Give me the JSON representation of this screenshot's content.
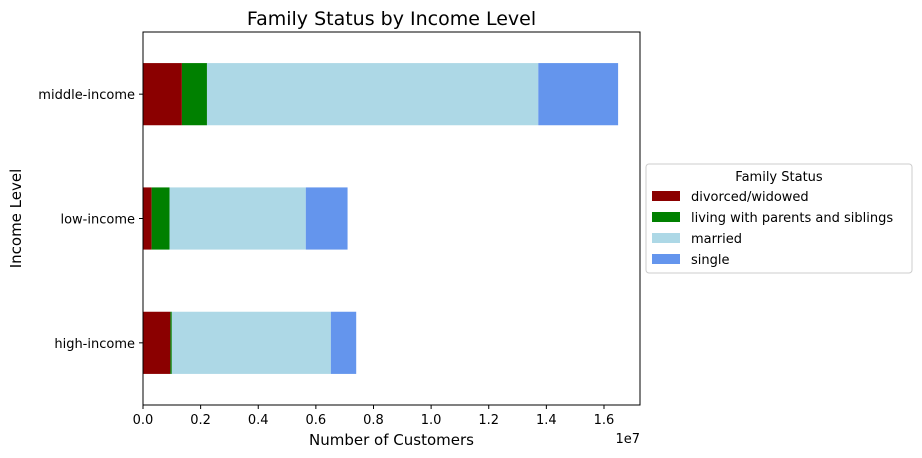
{
  "chart_data": {
    "type": "bar",
    "orientation": "horizontal",
    "stacked": true,
    "title": "Family Status by Income Level",
    "xlabel": "Number of Customers",
    "ylabel": "Income Level",
    "x_scale_label": "1e7",
    "xlim": [
      0,
      17250000
    ],
    "x_ticks": [
      0,
      2000000,
      4000000,
      6000000,
      8000000,
      10000000,
      12000000,
      14000000,
      16000000
    ],
    "x_tick_labels": [
      "0.0",
      "0.2",
      "0.4",
      "0.6",
      "0.8",
      "1.0",
      "1.2",
      "1.4",
      "1.6"
    ],
    "categories": [
      "high-income",
      "low-income",
      "middle-income"
    ],
    "series": [
      {
        "name": "divorced/widowed",
        "color": "#8b0000",
        "values": [
          950000,
          300000,
          1350000
        ]
      },
      {
        "name": "living with parents and siblings",
        "color": "#008000",
        "values": [
          50000,
          620000,
          870000
        ]
      },
      {
        "name": "married",
        "color": "#add8e6",
        "values": [
          5520000,
          4730000,
          11500000
        ]
      },
      {
        "name": "single",
        "color": "#6495ed",
        "values": [
          880000,
          1450000,
          2770000
        ]
      }
    ],
    "grid": false,
    "legend": {
      "title": "Family Status",
      "placement": "right-outside"
    }
  }
}
